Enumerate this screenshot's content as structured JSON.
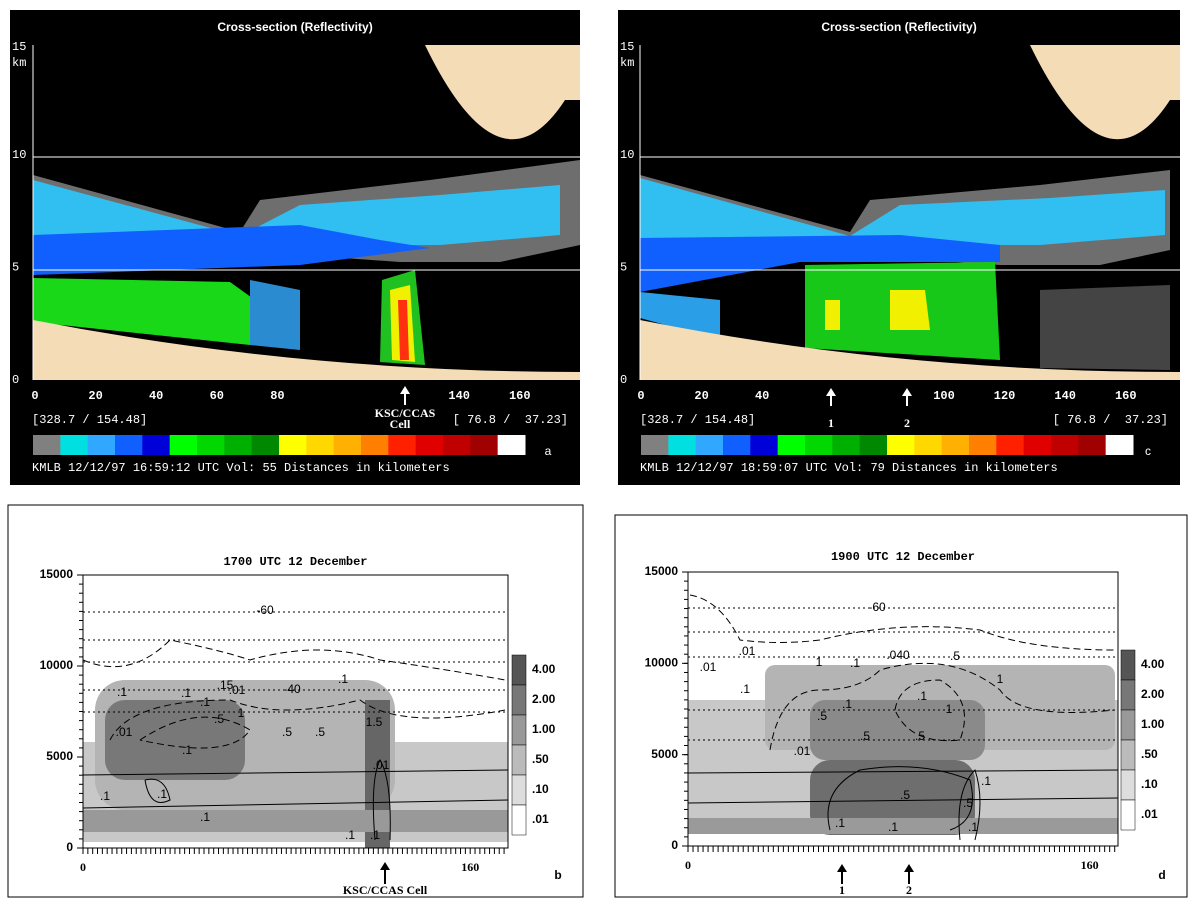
{
  "panels": [
    {
      "title": "Cross-section (Reflectivity)",
      "y_unit": "km",
      "yticks": [
        15,
        10,
        5,
        0
      ],
      "xticks": [
        0,
        20,
        40,
        60,
        80,
        140,
        160
      ],
      "arrow_labels": [
        "KSC/CCAS",
        "Cell"
      ],
      "left_coords": "[328.7 / 154.48]",
      "right_coords": "[ 76.8 /  37.23]",
      "letter": "a",
      "footer": "KMLB 12/12/97 16:59:12 UTC Vol: 55 Distances in kilometers"
    },
    {
      "title": "1700 UTC 12 December",
      "yticks": [
        15000,
        10000,
        5000,
        0
      ],
      "xticks": [
        0,
        160
      ],
      "colorbar": [
        "4.00",
        "2.00",
        "1.00",
        ".50",
        ".10",
        ".01"
      ],
      "contour_labels": [
        "-60",
        ".01",
        "-40",
        ".1",
        ".1",
        ".15",
        ".1",
        ".1",
        ".5",
        ".5",
        ".5",
        "1",
        ".01",
        ".1",
        "1.5",
        ".01",
        ".1",
        ".1",
        ".1",
        ".1",
        ".1"
      ],
      "arrow_labels": [
        "KSC/CCAS Cell"
      ],
      "letter": "b"
    },
    {
      "title": "Cross-section (Reflectivity)",
      "y_unit": "km",
      "yticks": [
        15,
        10,
        5,
        0
      ],
      "xticks": [
        0,
        20,
        40,
        100,
        120,
        140,
        160
      ],
      "arrow_labels": [
        "1",
        "2"
      ],
      "left_coords": "[328.7 / 154.48]",
      "right_coords": "[ 76.8 /  37.23]",
      "letter": "c",
      "footer": "KMLB 12/12/97 18:59:07 UTC Vol: 79 Distances in kilometers"
    },
    {
      "title": "1900 UTC 12 December",
      "yticks": [
        15000,
        10000,
        5000,
        0
      ],
      "xticks": [
        0,
        160
      ],
      "colorbar": [
        "4.00",
        "2.00",
        "1.00",
        ".50",
        ".10",
        ".01"
      ],
      "contour_labels": [
        "-60",
        ".01",
        ".01",
        ".1",
        ".040",
        ".5",
        "1",
        ".1",
        "1",
        ".5",
        ".1",
        "1",
        ".1",
        ".5",
        ".5",
        ".01",
        ".5",
        ".1",
        ".5",
        ".1",
        ".1",
        ".1"
      ],
      "arrow_labels": [
        "1",
        "2"
      ],
      "letter": "d"
    }
  ]
}
